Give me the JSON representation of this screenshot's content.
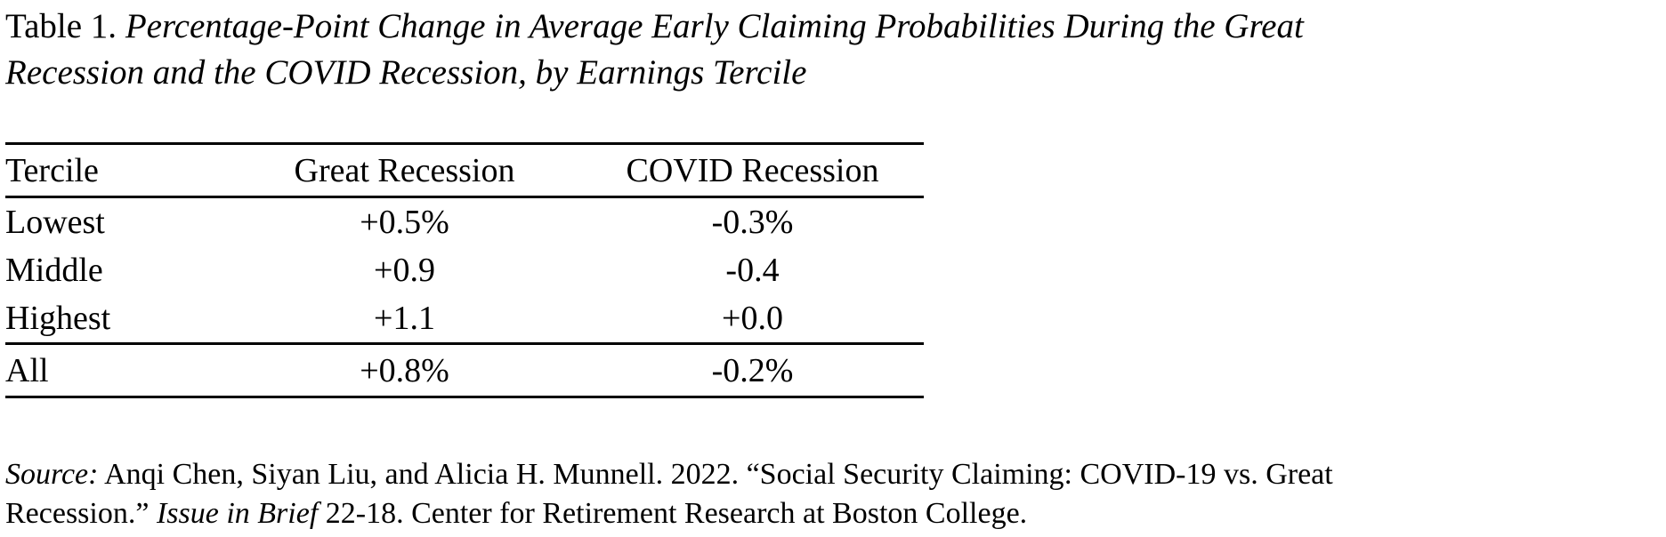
{
  "title": {
    "prefix": "Table 1. ",
    "italic_text": "Percentage-Point Change in Average Early Claiming Probabilities During the Great Recession and the COVID Recession, by Earnings Tercile"
  },
  "table": {
    "columns": [
      "Tercile",
      "Great Recession",
      "COVID Recession"
    ],
    "rows": [
      [
        "Lowest",
        "+0.5%",
        "-0.3%"
      ],
      [
        "Middle",
        "+0.9",
        "-0.4"
      ],
      [
        "Highest",
        "+1.1",
        "+0.0"
      ]
    ],
    "summary_row": [
      "All",
      "+0.8%",
      "-0.2%"
    ]
  },
  "source": {
    "label": "Source:",
    "before_italic": " Anqi Chen, Siyan Liu, and Alicia H. Munnell. 2022. “Social Security Claiming: COVID-19 vs. Great Recession.” ",
    "italic": "Issue in Brief",
    "after_italic": " 22-18. Center for Retirement Research at Boston College."
  },
  "colors": {
    "text": "#000000",
    "background": "#ffffff",
    "rule": "#000000"
  }
}
